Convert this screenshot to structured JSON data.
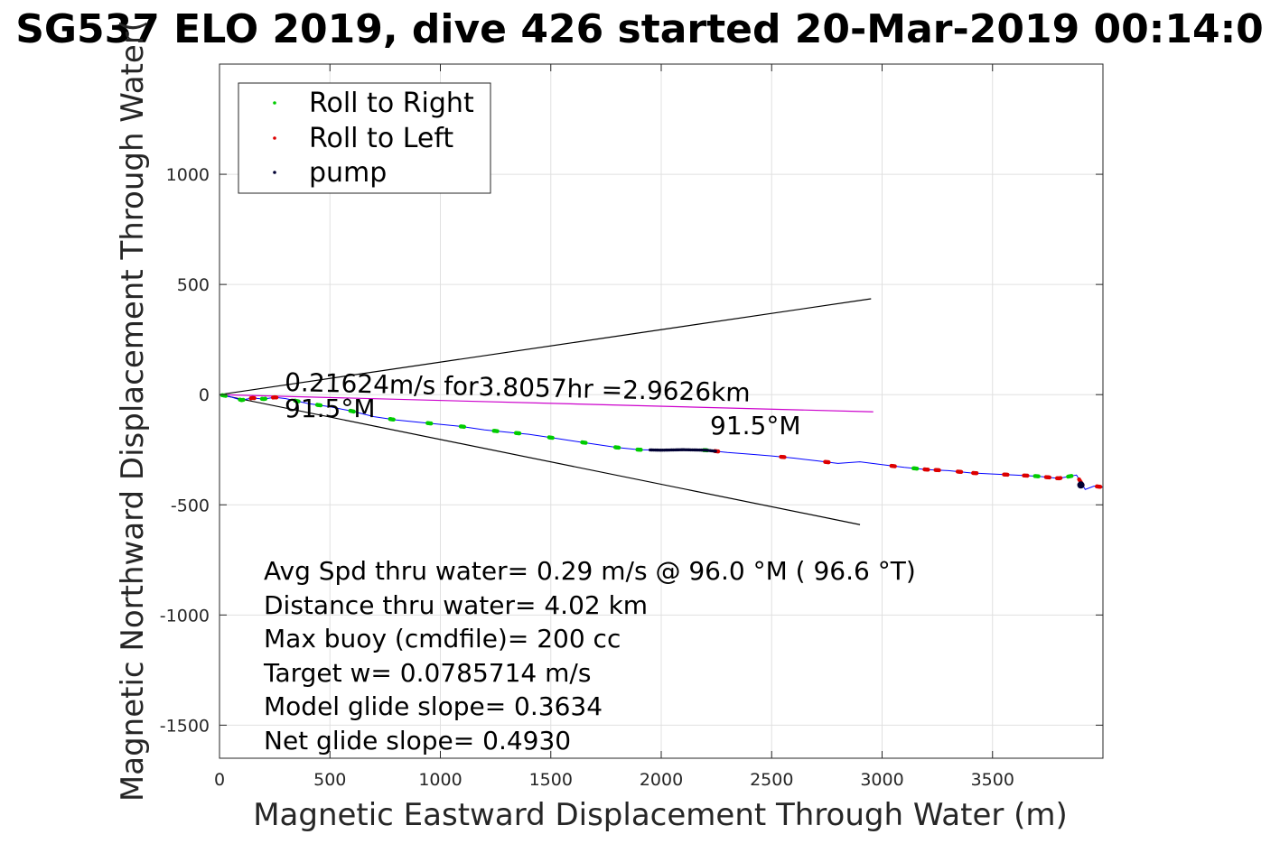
{
  "chart_data": {
    "type": "scatter",
    "title": "SG537 ELO 2019, dive 426 started 20-Mar-2019 00:14:0",
    "xlabel": "Magnetic Eastward Displacement Through Water (m)",
    "ylabel": "Magnetic Northward Displacement Through Water(",
    "xlim": [
      0,
      4000
    ],
    "ylim": [
      -1650,
      1500
    ],
    "xticks": [
      0,
      500,
      1000,
      1500,
      2000,
      2500,
      3000,
      3500
    ],
    "yticks": [
      1000,
      500,
      0,
      -500,
      -1000,
      -1500
    ],
    "xtick_labels": [
      "0",
      "500",
      "1000",
      "1500",
      "2000",
      "2500",
      "3000",
      "3500"
    ],
    "ytick_labels": [
      "1000",
      "500",
      "0",
      "-500",
      "-1000",
      "-1500"
    ],
    "grid": true,
    "legend_position": "top-left",
    "legend": [
      {
        "label": "Roll to Right",
        "color": "#00cc00"
      },
      {
        "label": "Roll to Left",
        "color": "#dd0000"
      },
      {
        "label": "pump",
        "color": "#000033"
      }
    ],
    "track": [
      [
        0,
        0
      ],
      [
        50,
        -10
      ],
      [
        100,
        -25
      ],
      [
        150,
        -15
      ],
      [
        200,
        -20
      ],
      [
        250,
        -12
      ],
      [
        300,
        -18
      ],
      [
        400,
        -40
      ],
      [
        500,
        -55
      ],
      [
        600,
        -75
      ],
      [
        700,
        -100
      ],
      [
        800,
        -115
      ],
      [
        900,
        -125
      ],
      [
        1000,
        -135
      ],
      [
        1100,
        -145
      ],
      [
        1200,
        -160
      ],
      [
        1300,
        -170
      ],
      [
        1400,
        -180
      ],
      [
        1500,
        -195
      ],
      [
        1600,
        -210
      ],
      [
        1700,
        -225
      ],
      [
        1800,
        -240
      ],
      [
        1900,
        -250
      ],
      [
        2000,
        -252
      ],
      [
        2100,
        -250
      ],
      [
        2200,
        -252
      ],
      [
        2300,
        -262
      ],
      [
        2400,
        -270
      ],
      [
        2500,
        -278
      ],
      [
        2600,
        -288
      ],
      [
        2700,
        -300
      ],
      [
        2800,
        -312
      ],
      [
        2900,
        -305
      ],
      [
        3000,
        -318
      ],
      [
        3100,
        -330
      ],
      [
        3200,
        -340
      ],
      [
        3300,
        -345
      ],
      [
        3400,
        -355
      ],
      [
        3500,
        -360
      ],
      [
        3600,
        -365
      ],
      [
        3700,
        -370
      ],
      [
        3800,
        -380
      ],
      [
        3880,
        -365
      ],
      [
        3920,
        -430
      ],
      [
        3960,
        -415
      ],
      [
        4000,
        -420
      ]
    ],
    "roll_right_x": [
      20,
      100,
      200,
      350,
      450,
      600,
      780,
      950,
      1100,
      1250,
      1350,
      1500,
      1650,
      1800,
      1900,
      2200,
      3150,
      3700,
      3850
    ],
    "roll_left_x": [
      150,
      250,
      2250,
      2550,
      2750,
      3050,
      3200,
      3250,
      3350,
      3420,
      3560,
      3650,
      3750,
      3800,
      3900,
      3980
    ],
    "pump_x_range": [
      1950,
      2250
    ],
    "pump_end": [
      3900,
      -410
    ],
    "heading_lines": [
      {
        "from": [
          0,
          0
        ],
        "to": [
          2950,
          435
        ],
        "color": "#000000"
      },
      {
        "from": [
          0,
          0
        ],
        "to": [
          2900,
          -590
        ],
        "color": "#000000"
      },
      {
        "from": [
          0,
          0
        ],
        "to": [
          2960,
          -78
        ],
        "color": "#cc00cc"
      }
    ],
    "annotations": {
      "speed_line": "0.21624m/s for3.8057hr =2.9626km",
      "heading_start": "91.5°M",
      "heading_end": "91.5°M"
    },
    "stats": [
      "Avg Spd thru water=  0.29 m/s @  96.0 °M ( 96.6 °T)",
      "Distance thru water=  4.02 km",
      "Max buoy (cmdfile)= 200 cc",
      "Target w= 0.0785714 m/s",
      "Model glide slope= 0.3634",
      "Net glide slope= 0.4930"
    ],
    "colors": {
      "track": "#0000ff",
      "roll_right": "#00cc00",
      "roll_left": "#dd0000",
      "pump": "#000033",
      "heading_line": "#000000",
      "mean_heading": "#cc00cc",
      "grid": "#e0e0e0"
    }
  }
}
